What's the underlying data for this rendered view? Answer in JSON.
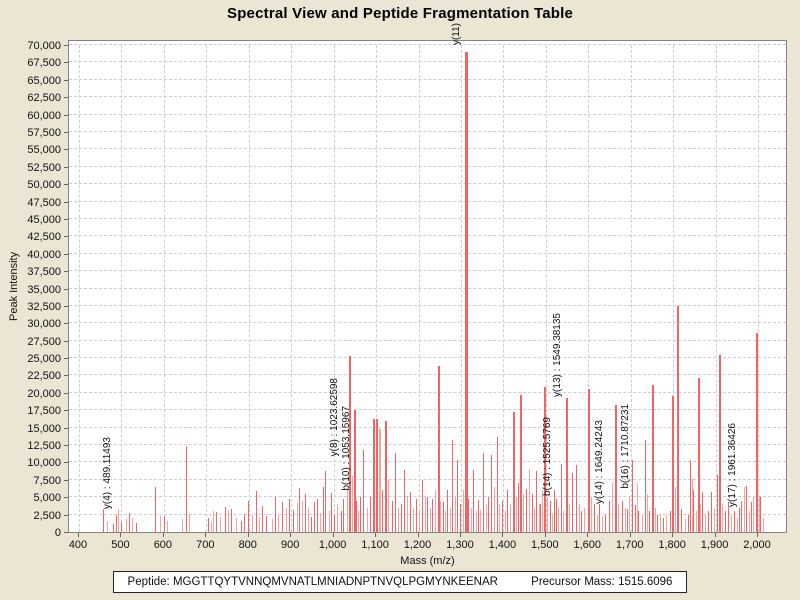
{
  "title": "Spectral View and Peptide Fragmentation Table",
  "footer": {
    "peptide_label": "Peptide:",
    "peptide_sequence": "MGGTTQYTVNNQMVNATLMNIADNPTNVQLPGMYNKEENAR",
    "precursor_label": "Precursor Mass:",
    "precursor_value": "1515.6096"
  },
  "chart_data": {
    "type": "bar",
    "subtype": "mass-spectrum-stick-plot",
    "title": "Spectral View and Peptide Fragmentation Table",
    "xlabel": "Mass (m/z)",
    "ylabel": "Peak Intensity",
    "xlim": [
      400,
      2070
    ],
    "ylim": [
      0,
      70000
    ],
    "grid": "dashed",
    "legend": "none",
    "peak_color": "#f26464",
    "peak_color_light": "#f8a2a2",
    "x_ticks": [
      [
        400,
        "400"
      ],
      [
        500,
        "500"
      ],
      [
        600,
        "600"
      ],
      [
        700,
        "700"
      ],
      [
        800,
        "800"
      ],
      [
        900,
        "900"
      ],
      [
        1000,
        "1,000"
      ],
      [
        1100,
        "1,100"
      ],
      [
        1200,
        "1,200"
      ],
      [
        1300,
        "1,300"
      ],
      [
        1400,
        "1,400"
      ],
      [
        1500,
        "1,500"
      ],
      [
        1600,
        "1,600"
      ],
      [
        1700,
        "1,700"
      ],
      [
        1800,
        "1,800"
      ],
      [
        1900,
        "1,900"
      ],
      [
        2000,
        "2,000"
      ]
    ],
    "y_ticks": [
      [
        0,
        "0"
      ],
      [
        2500,
        "2,500"
      ],
      [
        5000,
        "5,000"
      ],
      [
        7500,
        "7,500"
      ],
      [
        10000,
        "10,000"
      ],
      [
        12500,
        "12,500"
      ],
      [
        15000,
        "15,000"
      ],
      [
        17500,
        "17,500"
      ],
      [
        20000,
        "20,000"
      ],
      [
        22500,
        "22,500"
      ],
      [
        25000,
        "25,000"
      ],
      [
        27500,
        "27,500"
      ],
      [
        30000,
        "30,000"
      ],
      [
        32500,
        "32,500"
      ],
      [
        35000,
        "35,000"
      ],
      [
        37500,
        "37,500"
      ],
      [
        40000,
        "40,000"
      ],
      [
        42500,
        "42,500"
      ],
      [
        45000,
        "45,000"
      ],
      [
        47500,
        "47,500"
      ],
      [
        50000,
        "50,000"
      ],
      [
        52500,
        "52,500"
      ],
      [
        55000,
        "55,000"
      ],
      [
        57500,
        "57,500"
      ],
      [
        60000,
        "60,000"
      ],
      [
        62500,
        "62,500"
      ],
      [
        65000,
        "65,000"
      ],
      [
        67500,
        "67,500"
      ],
      [
        70000,
        "70,000"
      ]
    ],
    "annotations": [
      {
        "label": "y(4) : 489.11493",
        "mz": 489.11,
        "base_intensity": 3300
      },
      {
        "label": "y(8) : 1023.62598",
        "mz": 1023.63,
        "base_intensity": 10800
      },
      {
        "label": "b(10) : 1053.15967",
        "mz": 1053.16,
        "base_intensity": 5900
      },
      {
        "label": "y(11)",
        "mz": 1311.0,
        "base_intensity": 70000
      },
      {
        "label": "b(14) : 1525.5769",
        "mz": 1525.58,
        "base_intensity": 5200
      },
      {
        "label": "y(13) : 1549.38135",
        "mz": 1549.38,
        "base_intensity": 19400
      },
      {
        "label": "y(14) : 1649.24243",
        "mz": 1649.24,
        "base_intensity": 4000
      },
      {
        "label": "b(16) : 1710.87231",
        "mz": 1710.87,
        "base_intensity": 6200
      },
      {
        "label": "y(17) : 1961.36426",
        "mz": 1961.36,
        "base_intensity": 3600
      }
    ],
    "peaks": [
      [
        457,
        3300,
        0
      ],
      [
        468,
        1600,
        1
      ],
      [
        482,
        1200,
        0
      ],
      [
        489,
        2400,
        0
      ],
      [
        494,
        3300,
        1
      ],
      [
        499,
        1400,
        0
      ],
      [
        511,
        1800,
        1
      ],
      [
        520,
        2700,
        0
      ],
      [
        527,
        2000,
        1
      ],
      [
        535,
        1300,
        0
      ],
      [
        581,
        6400,
        0
      ],
      [
        593,
        2300,
        1
      ],
      [
        601,
        2300,
        0
      ],
      [
        608,
        1600,
        1
      ],
      [
        645,
        1800,
        1
      ],
      [
        653,
        12400,
        0
      ],
      [
        660,
        2600,
        1
      ],
      [
        706,
        2000,
        0
      ],
      [
        712,
        1500,
        1
      ],
      [
        718,
        3000,
        1
      ],
      [
        725,
        2900,
        0
      ],
      [
        734,
        2200,
        1
      ],
      [
        746,
        3600,
        0
      ],
      [
        752,
        3100,
        1
      ],
      [
        760,
        3300,
        0
      ],
      [
        770,
        2000,
        1
      ],
      [
        782,
        1600,
        0
      ],
      [
        790,
        2600,
        0
      ],
      [
        800,
        4400,
        0
      ],
      [
        810,
        2500,
        1
      ],
      [
        819,
        5900,
        0
      ],
      [
        826,
        2200,
        1
      ],
      [
        833,
        3800,
        0
      ],
      [
        843,
        2300,
        0
      ],
      [
        856,
        1800,
        1
      ],
      [
        864,
        5100,
        0
      ],
      [
        871,
        2500,
        1
      ],
      [
        880,
        4300,
        0
      ],
      [
        889,
        3500,
        1
      ],
      [
        897,
        4700,
        0
      ],
      [
        905,
        3200,
        0
      ],
      [
        914,
        4200,
        1
      ],
      [
        920,
        6300,
        0
      ],
      [
        927,
        4500,
        1
      ],
      [
        934,
        5500,
        0
      ],
      [
        940,
        3500,
        1
      ],
      [
        947,
        2200,
        0
      ],
      [
        954,
        4250,
        0
      ],
      [
        961,
        4800,
        0
      ],
      [
        969,
        2700,
        1
      ],
      [
        977,
        6500,
        0
      ],
      [
        982,
        8800,
        0
      ],
      [
        990,
        3000,
        1
      ],
      [
        996,
        5600,
        0
      ],
      [
        1003,
        2500,
        0
      ],
      [
        1010,
        4000,
        1
      ],
      [
        1018,
        3000,
        0
      ],
      [
        1024,
        4700,
        0
      ],
      [
        1032,
        6000,
        1
      ],
      [
        1038,
        25300,
        0
      ],
      [
        1045,
        8000,
        1
      ],
      [
        1050,
        17500,
        0
      ],
      [
        1053,
        4500,
        0
      ],
      [
        1058,
        3000,
        1
      ],
      [
        1064,
        5000,
        0
      ],
      [
        1071,
        11800,
        0
      ],
      [
        1080,
        3500,
        1
      ],
      [
        1088,
        5000,
        0
      ],
      [
        1094,
        16200,
        0
      ],
      [
        1100,
        16300,
        0
      ],
      [
        1107,
        14800,
        1
      ],
      [
        1115,
        6000,
        0
      ],
      [
        1123,
        16000,
        0
      ],
      [
        1130,
        7500,
        1
      ],
      [
        1138,
        4500,
        0
      ],
      [
        1145,
        11300,
        0
      ],
      [
        1152,
        3500,
        1
      ],
      [
        1160,
        4000,
        0
      ],
      [
        1166,
        8900,
        0
      ],
      [
        1174,
        5200,
        1
      ],
      [
        1182,
        5700,
        0
      ],
      [
        1189,
        3500,
        1
      ],
      [
        1195,
        4700,
        0
      ],
      [
        1203,
        3000,
        1
      ],
      [
        1210,
        7500,
        0
      ],
      [
        1216,
        5000,
        1
      ],
      [
        1222,
        5100,
        0
      ],
      [
        1229,
        3500,
        1
      ],
      [
        1234,
        4700,
        0
      ],
      [
        1240,
        6000,
        1
      ],
      [
        1246,
        23800,
        0
      ],
      [
        1252,
        4500,
        1
      ],
      [
        1258,
        4250,
        0
      ],
      [
        1264,
        3000,
        1
      ],
      [
        1269,
        6100,
        0
      ],
      [
        1276,
        3500,
        1
      ],
      [
        1281,
        13200,
        0
      ],
      [
        1287,
        5000,
        1
      ],
      [
        1293,
        10400,
        0
      ],
      [
        1300,
        4000,
        0
      ],
      [
        1306,
        6000,
        1
      ],
      [
        1311,
        69000,
        0
      ],
      [
        1317,
        4700,
        0
      ],
      [
        1324,
        3500,
        1
      ],
      [
        1330,
        8900,
        0
      ],
      [
        1336,
        3000,
        1
      ],
      [
        1342,
        4600,
        0
      ],
      [
        1347,
        3200,
        1
      ],
      [
        1354,
        11300,
        0
      ],
      [
        1360,
        4000,
        1
      ],
      [
        1366,
        5000,
        0
      ],
      [
        1373,
        11000,
        0
      ],
      [
        1379,
        6500,
        1
      ],
      [
        1385,
        13600,
        0
      ],
      [
        1392,
        4000,
        1
      ],
      [
        1398,
        4500,
        0
      ],
      [
        1404,
        3000,
        1
      ],
      [
        1410,
        6000,
        0
      ],
      [
        1417,
        4000,
        1
      ],
      [
        1424,
        17200,
        0
      ],
      [
        1430,
        5000,
        1
      ],
      [
        1436,
        7000,
        0
      ],
      [
        1441,
        19700,
        0
      ],
      [
        1448,
        5500,
        1
      ],
      [
        1455,
        6200,
        0
      ],
      [
        1462,
        9000,
        1
      ],
      [
        1468,
        5500,
        0
      ],
      [
        1473,
        3500,
        1
      ],
      [
        1478,
        8800,
        0
      ],
      [
        1484,
        4000,
        1
      ],
      [
        1488,
        4000,
        0
      ],
      [
        1493,
        6000,
        1
      ],
      [
        1498,
        20900,
        0
      ],
      [
        1504,
        5000,
        1
      ],
      [
        1510,
        4400,
        0
      ],
      [
        1515,
        2600,
        1
      ],
      [
        1520,
        6000,
        0
      ],
      [
        1525,
        4800,
        0
      ],
      [
        1531,
        3500,
        1
      ],
      [
        1536,
        9800,
        0
      ],
      [
        1541,
        3000,
        1
      ],
      [
        1549,
        19200,
        0
      ],
      [
        1556,
        4000,
        1
      ],
      [
        1563,
        8500,
        0
      ],
      [
        1572,
        9700,
        0
      ],
      [
        1579,
        4000,
        1
      ],
      [
        1585,
        3000,
        0
      ],
      [
        1591,
        3500,
        1
      ],
      [
        1601,
        20600,
        0
      ],
      [
        1608,
        5000,
        1
      ],
      [
        1615,
        4000,
        0
      ],
      [
        1621,
        2500,
        1
      ],
      [
        1627,
        4000,
        0
      ],
      [
        1633,
        2300,
        1
      ],
      [
        1640,
        2500,
        0
      ],
      [
        1649,
        4500,
        0
      ],
      [
        1657,
        7000,
        1
      ],
      [
        1665,
        18300,
        0
      ],
      [
        1672,
        4000,
        1
      ],
      [
        1680,
        4500,
        0
      ],
      [
        1687,
        3400,
        1
      ],
      [
        1693,
        3300,
        0
      ],
      [
        1698,
        5000,
        1
      ],
      [
        1705,
        10400,
        0
      ],
      [
        1711,
        3900,
        0
      ],
      [
        1716,
        7000,
        1
      ],
      [
        1719,
        3000,
        0
      ],
      [
        1727,
        2500,
        1
      ],
      [
        1736,
        13200,
        0
      ],
      [
        1740,
        5400,
        1
      ],
      [
        1745,
        3000,
        0
      ],
      [
        1752,
        21200,
        0
      ],
      [
        1758,
        3500,
        1
      ],
      [
        1764,
        2400,
        0
      ],
      [
        1771,
        2400,
        1
      ],
      [
        1778,
        2000,
        0
      ],
      [
        1785,
        2500,
        1
      ],
      [
        1793,
        3000,
        0
      ],
      [
        1799,
        19500,
        0
      ],
      [
        1805,
        6500,
        1
      ],
      [
        1811,
        32500,
        0
      ],
      [
        1820,
        3270,
        0
      ],
      [
        1830,
        1850,
        1
      ],
      [
        1836,
        2500,
        0
      ],
      [
        1842,
        10400,
        0
      ],
      [
        1846,
        7800,
        1
      ],
      [
        1849,
        6100,
        0
      ],
      [
        1855,
        3000,
        1
      ],
      [
        1859,
        22200,
        0
      ],
      [
        1865,
        4000,
        1
      ],
      [
        1869,
        5700,
        0
      ],
      [
        1876,
        2500,
        1
      ],
      [
        1883,
        3000,
        0
      ],
      [
        1891,
        5800,
        0
      ],
      [
        1898,
        3500,
        1
      ],
      [
        1905,
        8200,
        0
      ],
      [
        1910,
        25500,
        0
      ],
      [
        1917,
        4000,
        1
      ],
      [
        1923,
        3000,
        0
      ],
      [
        1930,
        4250,
        0
      ],
      [
        1937,
        2500,
        1
      ],
      [
        1944,
        3000,
        0
      ],
      [
        1952,
        2000,
        1
      ],
      [
        1957,
        3500,
        0
      ],
      [
        1961,
        4400,
        0
      ],
      [
        1968,
        6500,
        1
      ],
      [
        1974,
        6600,
        0
      ],
      [
        1980,
        3000,
        1
      ],
      [
        1984,
        4250,
        0
      ],
      [
        1990,
        5000,
        1
      ],
      [
        1996,
        28600,
        0
      ],
      [
        1999,
        13350,
        0
      ],
      [
        2003,
        5200,
        1
      ],
      [
        2007,
        5000,
        0
      ],
      [
        2013,
        2000,
        1
      ]
    ]
  }
}
